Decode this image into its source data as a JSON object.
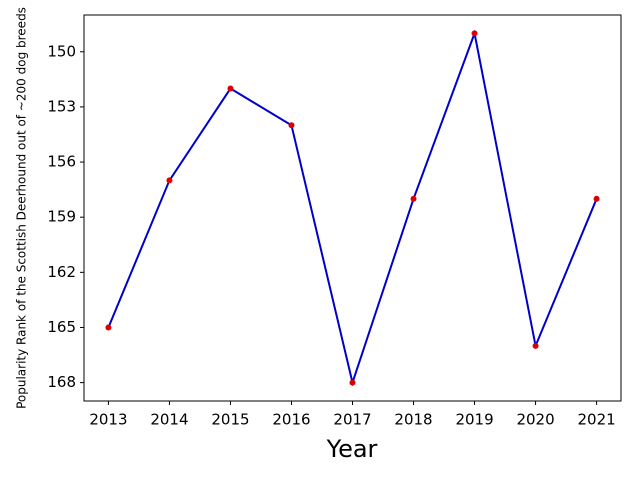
{
  "chart_data": {
    "type": "line",
    "xlabel": "Year",
    "ylabel": "Popularity Rank of the Scottish Deerhound out of ~200 dog breeds",
    "x": [
      2013,
      2014,
      2015,
      2016,
      2017,
      2018,
      2019,
      2020,
      2021
    ],
    "series": [
      {
        "color": "#0000cc",
        "marker_color": "#dd0000",
        "values": [
          165,
          157,
          152,
          154,
          168,
          158,
          149,
          166,
          158
        ]
      }
    ],
    "xlim": [
      2012.6,
      2021.4
    ],
    "xticks": [
      2013,
      2014,
      2015,
      2016,
      2017,
      2018,
      2019,
      2020,
      2021
    ],
    "ylim": [
      169,
      148
    ],
    "yticks": [
      150,
      153,
      156,
      159,
      162,
      165,
      168
    ]
  }
}
